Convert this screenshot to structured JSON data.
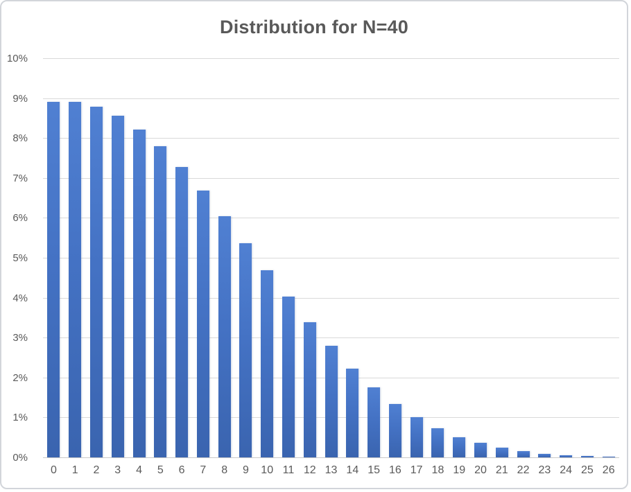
{
  "chart_data": {
    "type": "bar",
    "title": "Distribution for N=40",
    "xlabel": "",
    "ylabel": "",
    "categories": [
      "0",
      "1",
      "2",
      "3",
      "4",
      "5",
      "6",
      "7",
      "8",
      "9",
      "10",
      "11",
      "12",
      "13",
      "14",
      "15",
      "16",
      "17",
      "18",
      "19",
      "20",
      "21",
      "22",
      "23",
      "24",
      "25",
      "26"
    ],
    "values": [
      8.9,
      8.9,
      8.78,
      8.56,
      8.22,
      7.79,
      7.28,
      6.68,
      6.05,
      5.36,
      4.68,
      4.02,
      3.38,
      2.79,
      2.23,
      1.75,
      1.33,
      1.0,
      0.73,
      0.5,
      0.36,
      0.25,
      0.15,
      0.09,
      0.05,
      0.03,
      0.01
    ],
    "value_unit": "%",
    "ylim": [
      0,
      10
    ],
    "y_tick_step": 1,
    "y_tick_labels": [
      "0%",
      "1%",
      "2%",
      "3%",
      "4%",
      "5%",
      "6%",
      "7%",
      "8%",
      "9%",
      "10%"
    ],
    "grid": "horizontal",
    "legend": "none",
    "colors": {
      "bar_fill": "#4472c4",
      "bar_fill_light": "#5080d2",
      "bar_fill_dark": "#3a64af",
      "gridline": "#d9d9d9",
      "axis_line": "#c9c9c9",
      "text": "#595959",
      "background": "#ffffff",
      "frame_border": "#d2d5da"
    }
  }
}
